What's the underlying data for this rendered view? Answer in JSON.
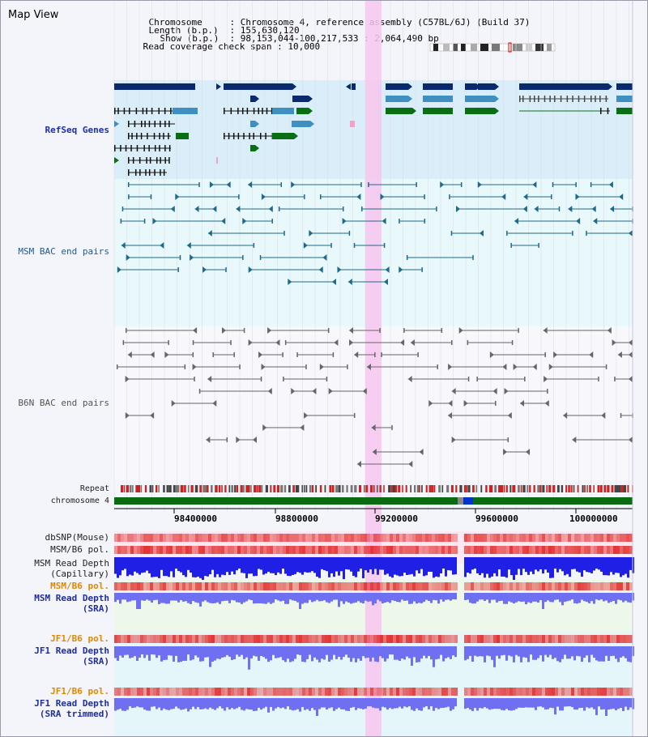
{
  "page": {
    "title": "Map View"
  },
  "header": {
    "chromosome_key": "Chromosome",
    "chromosome_value": "Chromosome 4, reference assembly (C57BL/6J) (Build 37)",
    "length_key": "Length (b.p.)",
    "length_value": "155,630,120",
    "show_key": "Show (b.p.)",
    "show_value": "98,153,044-100,217,533 : 2,064,490 bp",
    "coverage_key": "Read coverage check span",
    "coverage_value": "10,000"
  },
  "tracks": {
    "refseq": "RefSeq Genes",
    "msm_bac": "MSM BAC end pairs",
    "b6n_bac": "B6N BAC end pairs",
    "repeat": "Repeat",
    "chromosome": "chromosome 4",
    "dbsnp": "dbSNP(Mouse)",
    "msm_b6_pol": "MSM/B6 pol.",
    "msm_read_depth_cap_1": "MSM Read Depth",
    "msm_read_depth_cap_2": "(Capillary)",
    "msm_b6_pol_2": "MSM/B6 pol.",
    "msm_read_depth_sra_1": "MSM Read Depth",
    "msm_read_depth_sra_2": "(SRA)",
    "jf1_b6_pol": "JF1/B6 pol.",
    "jf1_read_depth_sra_1": "JF1 Read Depth",
    "jf1_read_depth_sra_2": "(SRA)",
    "jf1_b6_pol_2": "JF1/B6 pol.",
    "jf1_read_depth_trim_1": "JF1 Read Depth",
    "jf1_read_depth_trim_2": "(SRA trimmed)"
  },
  "axis": {
    "ticks": [
      "98400000",
      "98800000",
      "99200000",
      "99600000",
      "100000000"
    ]
  },
  "colors": {
    "refseq_dark": "#0a2a6e",
    "refseq_mid": "#3f8fc0",
    "refseq_green": "#0a6e14",
    "msm_pair": "#1f6a8a",
    "b6n_pair": "#666666",
    "highlight": "#f7c6ee",
    "chromosome_bar": "#0b6b12",
    "depth_blue": "#1f1fe6",
    "depth_light": "#6f6ff2",
    "pol_red": "#ea4a4a"
  }
}
